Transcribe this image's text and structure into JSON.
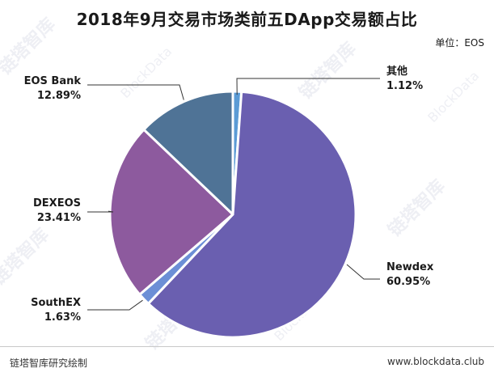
{
  "watermark": {
    "cn": "链塔智库",
    "en": "BlockData"
  },
  "unit_text": "单位：EOS",
  "footer": {
    "left": "链塔智库研究绘制",
    "right": "www.blockdata.club"
  },
  "chart_data": {
    "type": "pie",
    "title": "2018年9月交易市场类前五DApp交易额占比",
    "slices": [
      {
        "label": "其他",
        "percent_label": "1.12%",
        "value": 1.12,
        "color": "#5b9bd5"
      },
      {
        "label": "Newdex",
        "percent_label": "60.95%",
        "value": 60.95,
        "color": "#6a5fb0"
      },
      {
        "label": "SouthEX",
        "percent_label": "1.63%",
        "value": 1.63,
        "color": "#6c8fd6"
      },
      {
        "label": "DEXEOS",
        "percent_label": "23.41%",
        "value": 23.41,
        "color": "#8d5a9e"
      },
      {
        "label": "EOS Bank",
        "percent_label": "12.89%",
        "value": 12.89,
        "color": "#4f7396"
      }
    ],
    "start_angle_deg": 0,
    "direction": "clockwise"
  }
}
